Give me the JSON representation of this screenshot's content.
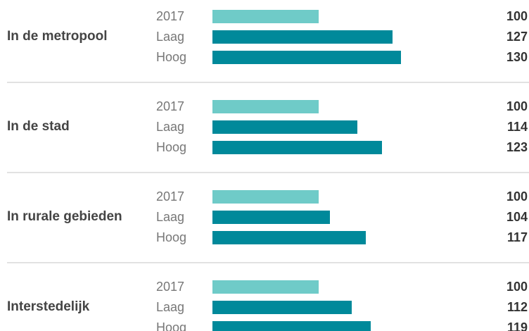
{
  "chart_data": {
    "type": "bar",
    "orientation": "horizontal",
    "categories": [
      "In de metropool",
      "In de stad",
      "In rurale gebieden",
      "Interstedelijk"
    ],
    "series": [
      {
        "name": "2017",
        "color": "#6fcbc8",
        "values": [
          100,
          100,
          100,
          100
        ]
      },
      {
        "name": "Laag",
        "color": "#00899a",
        "values": [
          127,
          114,
          104,
          112
        ]
      },
      {
        "name": "Hoog",
        "color": "#00899a",
        "values": [
          130,
          123,
          117,
          119
        ]
      }
    ],
    "xlim": [
      61,
      130
    ]
  }
}
